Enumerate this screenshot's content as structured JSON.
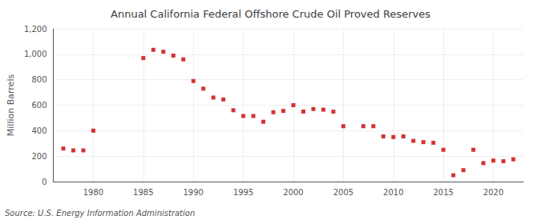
{
  "chart_data": {
    "type": "scatter",
    "title": "Annual California Federal Offshore Crude Oil Proved Reserves",
    "ylabel": "Million Barrels",
    "annotation": "Source: U.S. Energy Information Administration",
    "color": "#cc0000",
    "marker": "square",
    "grid": true,
    "x": [
      1977,
      1978,
      1979,
      1980,
      1985,
      1986,
      1987,
      1988,
      1989,
      1990,
      1991,
      1992,
      1993,
      1994,
      1995,
      1996,
      1997,
      1998,
      1999,
      2000,
      2001,
      2002,
      2003,
      2004,
      2005,
      2007,
      2008,
      2009,
      2010,
      2011,
      2012,
      2013,
      2014,
      2015,
      2016,
      2017,
      2018,
      2019,
      2020,
      2021,
      2022
    ],
    "values": [
      260,
      245,
      245,
      400,
      970,
      1035,
      1020,
      990,
      960,
      790,
      730,
      660,
      645,
      560,
      515,
      515,
      470,
      545,
      555,
      600,
      550,
      570,
      565,
      550,
      435,
      435,
      435,
      355,
      350,
      355,
      320,
      310,
      305,
      250,
      50,
      90,
      250,
      145,
      165,
      160,
      175
    ],
    "xlim": [
      1976,
      2023
    ],
    "xticks": [
      1980,
      1985,
      1990,
      1995,
      2000,
      2005,
      2010,
      2015,
      2020
    ],
    "ylim": [
      0,
      1200
    ],
    "yticks": [
      0,
      200,
      400,
      600,
      {
        "value": 800,
        "label": "800"
      },
      {
        "value": 1000,
        "label": "1,000"
      },
      {
        "value": 1200,
        "label": "1,200"
      }
    ]
  }
}
